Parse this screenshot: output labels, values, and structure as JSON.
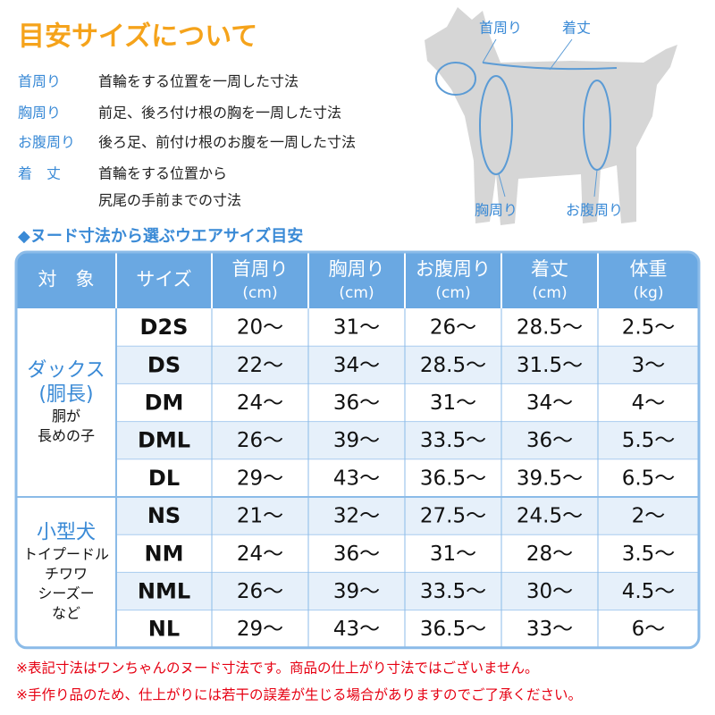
{
  "header": {
    "title": "目安サイズについて"
  },
  "definitions": [
    {
      "term": "首周り",
      "lines": [
        "首輪をする位置を一周した寸法"
      ]
    },
    {
      "term": "胸周り",
      "lines": [
        "前足、後ろ付け根の胸を一周した寸法"
      ]
    },
    {
      "term": "お腹周り",
      "lines": [
        "後ろ足、前付け根のお腹を一周した寸法"
      ]
    },
    {
      "term": "着　丈",
      "lines": [
        "首輪をする位置から",
        "尻尾の手前までの寸法"
      ]
    }
  ],
  "diagram": {
    "labels": [
      "首周り",
      "着丈",
      "胸周り",
      "お腹周り"
    ]
  },
  "table": {
    "heading": "◆ヌード寸法から選ぶウエアサイズ目安",
    "columns": [
      {
        "name": "対　象"
      },
      {
        "name": "サイズ"
      },
      {
        "name": "首周り",
        "unit": "(cm)"
      },
      {
        "name": "胸周り",
        "unit": "(cm)"
      },
      {
        "name": "お腹周り",
        "unit": "(cm)"
      },
      {
        "name": "着丈",
        "unit": "(cm)"
      },
      {
        "name": "体重",
        "unit": "(kg)"
      }
    ],
    "groups": [
      {
        "title": [
          "ダックス",
          "(胴長)"
        ],
        "desc": [
          "胴が",
          "長めの子"
        ],
        "rows": [
          [
            "D2S",
            "20～",
            "31～",
            "26～",
            "28.5～",
            "2.5～"
          ],
          [
            "DS",
            "22～",
            "34～",
            "28.5～",
            "31.5～",
            "3～"
          ],
          [
            "DM",
            "24～",
            "36～",
            "31～",
            "34～",
            "4～"
          ],
          [
            "DML",
            "26～",
            "39～",
            "33.5～",
            "36～",
            "5.5～"
          ],
          [
            "DL",
            "29～",
            "43～",
            "36.5～",
            "39.5～",
            "6.5～"
          ]
        ]
      },
      {
        "title": [
          "小型犬"
        ],
        "desc": [
          "トイプードル",
          "チワワ",
          "シーズー",
          "など"
        ],
        "rows": [
          [
            "NS",
            "21～",
            "32～",
            "27.5～",
            "24.5～",
            "2～"
          ],
          [
            "NM",
            "24～",
            "36～",
            "31～",
            "28～",
            "3.5～"
          ],
          [
            "NML",
            "26～",
            "39～",
            "33.5～",
            "30～",
            "4.5～"
          ],
          [
            "NL",
            "29～",
            "43～",
            "36.5～",
            "33～",
            "6～"
          ]
        ]
      }
    ]
  },
  "notes": [
    "※表記寸法はワンちゃんのヌード寸法です。商品の仕上がり寸法ではございません。",
    "※手作り品のため、仕上がりには若干の誤差が生じる場合がありますのでご了承ください。"
  ]
}
